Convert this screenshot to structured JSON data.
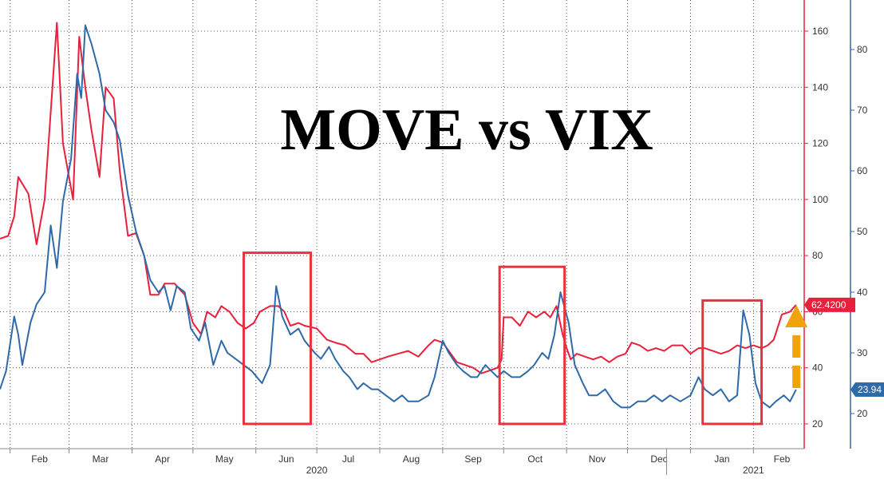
{
  "chart_data": {
    "type": "line",
    "title": "MOVE vs VIX",
    "x_start": "2020-01-27",
    "x_end": "2021-02-26",
    "month_ticks": [
      {
        "label": "Feb",
        "date": "2020-02-01"
      },
      {
        "label": "Mar",
        "date": "2020-03-01"
      },
      {
        "label": "Apr",
        "date": "2020-04-01"
      },
      {
        "label": "May",
        "date": "2020-05-01"
      },
      {
        "label": "Jun",
        "date": "2020-06-01"
      },
      {
        "label": "Jul",
        "date": "2020-07-01"
      },
      {
        "label": "Aug",
        "date": "2020-08-01"
      },
      {
        "label": "Sep",
        "date": "2020-09-01"
      },
      {
        "label": "Oct",
        "date": "2020-10-01"
      },
      {
        "label": "Nov",
        "date": "2020-11-01"
      },
      {
        "label": "Dec",
        "date": "2020-12-01"
      },
      {
        "label": "Jan",
        "date": "2021-01-01"
      },
      {
        "label": "Feb",
        "date": "2021-02-01"
      }
    ],
    "year_labels": [
      {
        "label": "2020",
        "date": "2020-07-01"
      },
      {
        "label": "2021",
        "date": "2021-02-01"
      }
    ],
    "red_axis": {
      "ylim": [
        15,
        167
      ],
      "ticks": [
        20,
        40,
        60,
        80,
        100,
        120,
        140,
        160
      ]
    },
    "blue_axis": {
      "ylim": [
        16.4,
        87.5
      ],
      "ticks": [
        20,
        30,
        40,
        50,
        60,
        70,
        80
      ]
    },
    "series": [
      {
        "color": "#e8203c",
        "axis": "red",
        "last_value_label": "62.4200",
        "points": [
          [
            "2020-01-27",
            86
          ],
          [
            "2020-01-31",
            87
          ],
          [
            "2020-02-03",
            94
          ],
          [
            "2020-02-05",
            108
          ],
          [
            "2020-02-10",
            102
          ],
          [
            "2020-02-14",
            84
          ],
          [
            "2020-02-18",
            100
          ],
          [
            "2020-02-24",
            163
          ],
          [
            "2020-02-27",
            120
          ],
          [
            "2020-03-03",
            100
          ],
          [
            "2020-03-06",
            158
          ],
          [
            "2020-03-09",
            140
          ],
          [
            "2020-03-12",
            125
          ],
          [
            "2020-03-16",
            108
          ],
          [
            "2020-03-19",
            140
          ],
          [
            "2020-03-23",
            136
          ],
          [
            "2020-03-26",
            110
          ],
          [
            "2020-03-30",
            87
          ],
          [
            "2020-04-03",
            88
          ],
          [
            "2020-04-07",
            80
          ],
          [
            "2020-04-10",
            66
          ],
          [
            "2020-04-14",
            66
          ],
          [
            "2020-04-17",
            70
          ],
          [
            "2020-04-22",
            70
          ],
          [
            "2020-04-27",
            66
          ],
          [
            "2020-05-01",
            56
          ],
          [
            "2020-05-05",
            52
          ],
          [
            "2020-05-08",
            60
          ],
          [
            "2020-05-12",
            58
          ],
          [
            "2020-05-15",
            62
          ],
          [
            "2020-05-19",
            60
          ],
          [
            "2020-05-23",
            56
          ],
          [
            "2020-05-27",
            54
          ],
          [
            "2020-05-31",
            56
          ],
          [
            "2020-06-03",
            60
          ],
          [
            "2020-06-08",
            62
          ],
          [
            "2020-06-12",
            62
          ],
          [
            "2020-06-15",
            60
          ],
          [
            "2020-06-18",
            55
          ],
          [
            "2020-06-22",
            56
          ],
          [
            "2020-06-25",
            55
          ],
          [
            "2020-07-01",
            54
          ],
          [
            "2020-07-06",
            50
          ],
          [
            "2020-07-10",
            49
          ],
          [
            "2020-07-15",
            48
          ],
          [
            "2020-07-20",
            45
          ],
          [
            "2020-07-24",
            45
          ],
          [
            "2020-07-28",
            42
          ],
          [
            "2020-08-01",
            43
          ],
          [
            "2020-08-05",
            44
          ],
          [
            "2020-08-10",
            45
          ],
          [
            "2020-08-15",
            46
          ],
          [
            "2020-08-20",
            44
          ],
          [
            "2020-08-25",
            48
          ],
          [
            "2020-08-28",
            50
          ],
          [
            "2020-09-01",
            49
          ],
          [
            "2020-09-04",
            46
          ],
          [
            "2020-09-08",
            42
          ],
          [
            "2020-09-12",
            41
          ],
          [
            "2020-09-16",
            40
          ],
          [
            "2020-09-20",
            38
          ],
          [
            "2020-09-24",
            39
          ],
          [
            "2020-09-28",
            40
          ],
          [
            "2020-09-30",
            43
          ],
          [
            "2020-10-01",
            58
          ],
          [
            "2020-10-05",
            58
          ],
          [
            "2020-10-09",
            55
          ],
          [
            "2020-10-13",
            60
          ],
          [
            "2020-10-17",
            58
          ],
          [
            "2020-10-21",
            60
          ],
          [
            "2020-10-24",
            58
          ],
          [
            "2020-10-27",
            62
          ],
          [
            "2020-10-30",
            52
          ],
          [
            "2020-11-01",
            47
          ],
          [
            "2020-11-03",
            43
          ],
          [
            "2020-11-06",
            45
          ],
          [
            "2020-11-10",
            44
          ],
          [
            "2020-11-14",
            43
          ],
          [
            "2020-11-18",
            44
          ],
          [
            "2020-11-22",
            42
          ],
          [
            "2020-11-26",
            44
          ],
          [
            "2020-11-30",
            45
          ],
          [
            "2020-12-03",
            49
          ],
          [
            "2020-12-07",
            48
          ],
          [
            "2020-12-11",
            46
          ],
          [
            "2020-12-15",
            47
          ],
          [
            "2020-12-19",
            46
          ],
          [
            "2020-12-23",
            48
          ],
          [
            "2020-12-28",
            48
          ],
          [
            "2021-01-01",
            45
          ],
          [
            "2021-01-05",
            47
          ],
          [
            "2021-01-08",
            47
          ],
          [
            "2021-01-12",
            46
          ],
          [
            "2021-01-16",
            45
          ],
          [
            "2021-01-20",
            46
          ],
          [
            "2021-01-24",
            48
          ],
          [
            "2021-01-28",
            47
          ],
          [
            "2021-02-01",
            48
          ],
          [
            "2021-02-05",
            47
          ],
          [
            "2021-02-08",
            48
          ],
          [
            "2021-02-11",
            50
          ],
          [
            "2021-02-15",
            59
          ],
          [
            "2021-02-19",
            60
          ],
          [
            "2021-02-22",
            62.42
          ]
        ]
      },
      {
        "color": "#2f6aa8",
        "axis": "blue",
        "last_value_label": "23.94",
        "points": [
          [
            "2020-01-27",
            24
          ],
          [
            "2020-01-30",
            27
          ],
          [
            "2020-02-03",
            36
          ],
          [
            "2020-02-05",
            33
          ],
          [
            "2020-02-07",
            28
          ],
          [
            "2020-02-11",
            35
          ],
          [
            "2020-02-14",
            38
          ],
          [
            "2020-02-18",
            40
          ],
          [
            "2020-02-21",
            51
          ],
          [
            "2020-02-24",
            44
          ],
          [
            "2020-02-27",
            55
          ],
          [
            "2020-03-02",
            62
          ],
          [
            "2020-03-05",
            76
          ],
          [
            "2020-03-07",
            72
          ],
          [
            "2020-03-09",
            84
          ],
          [
            "2020-03-12",
            81
          ],
          [
            "2020-03-16",
            76
          ],
          [
            "2020-03-19",
            70
          ],
          [
            "2020-03-23",
            68
          ],
          [
            "2020-03-26",
            65
          ],
          [
            "2020-03-30",
            56
          ],
          [
            "2020-04-03",
            50
          ],
          [
            "2020-04-07",
            46
          ],
          [
            "2020-04-10",
            42
          ],
          [
            "2020-04-14",
            40
          ],
          [
            "2020-04-17",
            41
          ],
          [
            "2020-04-20",
            37
          ],
          [
            "2020-04-23",
            41
          ],
          [
            "2020-04-27",
            40
          ],
          [
            "2020-04-30",
            34
          ],
          [
            "2020-05-04",
            32
          ],
          [
            "2020-05-07",
            35
          ],
          [
            "2020-05-11",
            28
          ],
          [
            "2020-05-15",
            32
          ],
          [
            "2020-05-18",
            30
          ],
          [
            "2020-05-22",
            29
          ],
          [
            "2020-05-26",
            28
          ],
          [
            "2020-05-30",
            27
          ],
          [
            "2020-06-04",
            25
          ],
          [
            "2020-06-08",
            28
          ],
          [
            "2020-06-11",
            41
          ],
          [
            "2020-06-14",
            36
          ],
          [
            "2020-06-18",
            33
          ],
          [
            "2020-06-22",
            34
          ],
          [
            "2020-06-25",
            32
          ],
          [
            "2020-06-30",
            30
          ],
          [
            "2020-07-03",
            29
          ],
          [
            "2020-07-07",
            31
          ],
          [
            "2020-07-10",
            29
          ],
          [
            "2020-07-14",
            27
          ],
          [
            "2020-07-17",
            26
          ],
          [
            "2020-07-21",
            24
          ],
          [
            "2020-07-24",
            25
          ],
          [
            "2020-07-28",
            24
          ],
          [
            "2020-07-31",
            24
          ],
          [
            "2020-08-04",
            23
          ],
          [
            "2020-08-08",
            22
          ],
          [
            "2020-08-12",
            23
          ],
          [
            "2020-08-15",
            22
          ],
          [
            "2020-08-20",
            22
          ],
          [
            "2020-08-25",
            23
          ],
          [
            "2020-08-28",
            26
          ],
          [
            "2020-09-01",
            32
          ],
          [
            "2020-09-04",
            30
          ],
          [
            "2020-09-08",
            28
          ],
          [
            "2020-09-11",
            27
          ],
          [
            "2020-09-15",
            26
          ],
          [
            "2020-09-18",
            26
          ],
          [
            "2020-09-22",
            28
          ],
          [
            "2020-09-25",
            27
          ],
          [
            "2020-09-28",
            26
          ],
          [
            "2020-10-01",
            27
          ],
          [
            "2020-10-05",
            26
          ],
          [
            "2020-10-09",
            26
          ],
          [
            "2020-10-13",
            27
          ],
          [
            "2020-10-16",
            28
          ],
          [
            "2020-10-20",
            30
          ],
          [
            "2020-10-23",
            29
          ],
          [
            "2020-10-26",
            33
          ],
          [
            "2020-10-29",
            40
          ],
          [
            "2020-11-02",
            35
          ],
          [
            "2020-11-05",
            28
          ],
          [
            "2020-11-09",
            25
          ],
          [
            "2020-11-12",
            23
          ],
          [
            "2020-11-16",
            23
          ],
          [
            "2020-11-20",
            24
          ],
          [
            "2020-11-24",
            22
          ],
          [
            "2020-11-28",
            21
          ],
          [
            "2020-12-02",
            21
          ],
          [
            "2020-12-06",
            22
          ],
          [
            "2020-12-10",
            22
          ],
          [
            "2020-12-14",
            23
          ],
          [
            "2020-12-18",
            22
          ],
          [
            "2020-12-22",
            23
          ],
          [
            "2020-12-27",
            22
          ],
          [
            "2021-01-01",
            23
          ],
          [
            "2021-01-05",
            26
          ],
          [
            "2021-01-08",
            24
          ],
          [
            "2021-01-12",
            23
          ],
          [
            "2021-01-16",
            24
          ],
          [
            "2021-01-20",
            22
          ],
          [
            "2021-01-24",
            23
          ],
          [
            "2021-01-27",
            37
          ],
          [
            "2021-01-30",
            33
          ],
          [
            "2021-02-02",
            25
          ],
          [
            "2021-02-05",
            22
          ],
          [
            "2021-02-09",
            21
          ],
          [
            "2021-02-12",
            22
          ],
          [
            "2021-02-16",
            23
          ],
          [
            "2021-02-19",
            22
          ],
          [
            "2021-02-22",
            23.94
          ]
        ]
      }
    ],
    "highlight_boxes": [
      {
        "from": "2020-05-26",
        "to": "2020-06-28",
        "red_top": 81,
        "red_bottom": 20
      },
      {
        "from": "2020-09-29",
        "to": "2020-10-31",
        "red_top": 76,
        "red_bottom": 20
      },
      {
        "from": "2021-01-07",
        "to": "2021-02-05",
        "red_top": 64,
        "red_bottom": 20
      }
    ],
    "arrow": {
      "date": "2021-02-19",
      "color": "#f0a30a"
    }
  }
}
